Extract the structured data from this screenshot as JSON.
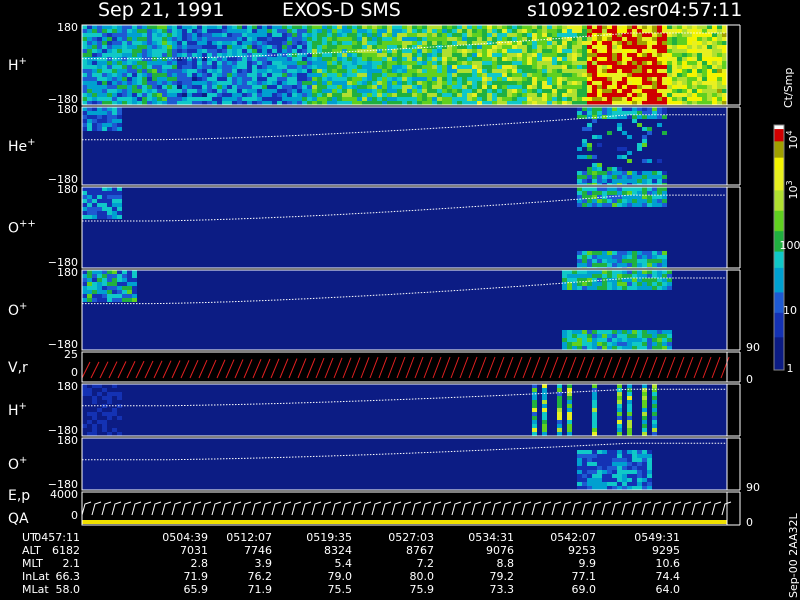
{
  "header": {
    "date": "Sep 21, 1991",
    "instrument": "EXOS-D SMS",
    "file": "s1092102.esr",
    "time": "04:57:11"
  },
  "panels": [
    {
      "label": "H",
      "sup": "+",
      "ticks": [
        "180",
        "−180"
      ]
    },
    {
      "label": "He",
      "sup": "+",
      "ticks": [
        "180",
        "−180"
      ]
    },
    {
      "label": "O",
      "sup": "++",
      "ticks": [
        "180",
        "−180"
      ]
    },
    {
      "label": "O",
      "sup": "+",
      "ticks": [
        "180",
        "−180"
      ],
      "right_tick": "90"
    },
    {
      "label": "V,r",
      "ticks": [
        "25",
        "0"
      ],
      "right_tick": "0"
    },
    {
      "label": "H",
      "sup": "+",
      "ticks": [
        "180",
        "−180"
      ]
    },
    {
      "label": "O",
      "sup": "+",
      "ticks": [
        "180",
        "−180"
      ],
      "right_tick": "90"
    },
    {
      "label": "E,p",
      "label2": "QA",
      "ticks": [
        "4000",
        "0"
      ],
      "right_tick": "0"
    }
  ],
  "colorbar": {
    "unit": "Ct/Smp",
    "labels": [
      {
        "base": "10",
        "exp": "4"
      },
      {
        "base": "10",
        "exp": "3"
      },
      "100",
      "10",
      "1"
    ]
  },
  "side_note": "Sep-00 2AA32L",
  "table": {
    "rows": [
      {
        "label": "UT",
        "cells": [
          "0457:11",
          "0504:39",
          "0512:07",
          "0519:35",
          "0527:03",
          "0534:31",
          "0542:07",
          "0549:31"
        ]
      },
      {
        "label": "ALT",
        "cells": [
          "6182",
          "7031",
          "7746",
          "8324",
          "8767",
          "9076",
          "9253",
          "9295"
        ]
      },
      {
        "label": "MLT",
        "cells": [
          "2.1",
          "2.8",
          "3.9",
          "5.4",
          "7.2",
          "8.8",
          "9.9",
          "10.6"
        ]
      },
      {
        "label": "InLat",
        "cells": [
          "66.3",
          "71.9",
          "76.2",
          "79.0",
          "80.0",
          "79.2",
          "77.1",
          "74.4"
        ]
      },
      {
        "label": "MLat",
        "cells": [
          "58.0",
          "65.9",
          "71.9",
          "75.5",
          "75.9",
          "73.3",
          "69.0",
          "64.0"
        ]
      }
    ]
  }
}
